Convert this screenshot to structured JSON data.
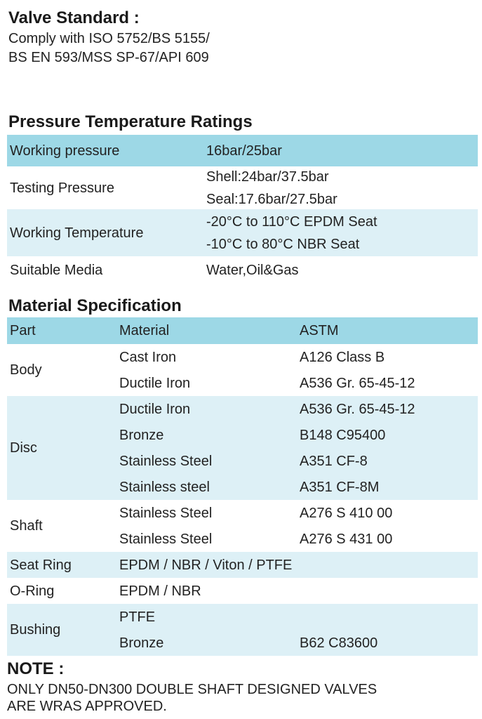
{
  "valve_standard": {
    "title": "Valve Standard :",
    "lines": [
      "Comply with ISO 5752/BS 5155/",
      "BS EN 593/MSS SP-67/API 609"
    ]
  },
  "pressure_ratings": {
    "title": "Pressure Temperature Ratings",
    "rows": [
      {
        "label": "Working pressure",
        "values": [
          "16bar/25bar"
        ]
      },
      {
        "label": "Testing Pressure",
        "values": [
          "Shell:24bar/37.5bar",
          "Seal:17.6bar/27.5bar"
        ]
      },
      {
        "label": "Working Temperature",
        "values": [
          "-20°C to 110°C EPDM Seat",
          "-10°C to 80°C NBR Seat"
        ]
      },
      {
        "label": "Suitable Media",
        "values": [
          "Water,Oil&Gas"
        ]
      }
    ]
  },
  "material_specification": {
    "title": "Material Specification",
    "header": [
      "Part",
      "Material",
      "ASTM"
    ],
    "groups": [
      {
        "part": "Body",
        "items": [
          [
            "Cast Iron",
            "A126 Class B"
          ],
          [
            "Ductile Iron",
            "A536 Gr. 65-45-12"
          ]
        ]
      },
      {
        "part": "Disc",
        "items": [
          [
            "Ductile Iron",
            "A536 Gr. 65-45-12"
          ],
          [
            "Bronze",
            "B148 C95400"
          ],
          [
            "Stainless Steel",
            "A351 CF-8"
          ],
          [
            "Stainless steel",
            "A351 CF-8M"
          ]
        ]
      },
      {
        "part": "Shaft",
        "items": [
          [
            "Stainless Steel",
            "A276 S 410 00"
          ],
          [
            "Stainless Steel",
            "A276 S 431 00"
          ]
        ]
      },
      {
        "part": "Seat Ring",
        "items": [
          [
            "EPDM / NBR / Viton / PTFE"
          ]
        ]
      },
      {
        "part": "O-Ring",
        "items": [
          [
            "EPDM / NBR"
          ]
        ]
      },
      {
        "part": "Bushing",
        "items": [
          [
            "PTFE"
          ],
          [
            "Bronze",
            "B62 C83600"
          ]
        ]
      }
    ]
  },
  "note": {
    "title": "NOTE :",
    "lines": [
      "ONLY DN50-DN300 DOUBLE SHAFT DESIGNED VALVES",
      "ARE WRAS APPROVED."
    ]
  }
}
